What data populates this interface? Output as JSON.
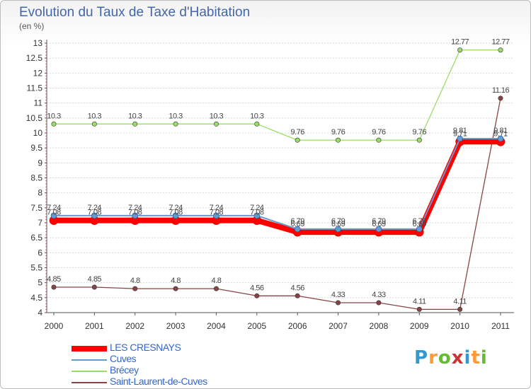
{
  "chart_data": {
    "type": "line",
    "title": "Evolution du Taux de Taxe d'Habitation",
    "subtitle": "(en %)",
    "x": [
      "2000",
      "2001",
      "2002",
      "2003",
      "2004",
      "2005",
      "2006",
      "2007",
      "2008",
      "2009",
      "2010",
      "2011"
    ],
    "ylim": [
      4,
      13
    ],
    "yticks": [
      "4",
      "4.5",
      "5",
      "5.5",
      "6",
      "6.5",
      "7",
      "7.5",
      "8",
      "8.5",
      "9",
      "9.5",
      "10",
      "10.5",
      "11",
      "11.5",
      "12",
      "12.5",
      "13"
    ],
    "grid": "horizontal",
    "legend_position": "bottom-left",
    "series": [
      {
        "name": "LES CRESNAYS",
        "color": "#ff0000",
        "values": [
          7.08,
          7.08,
          7.08,
          7.08,
          7.08,
          7.08,
          6.69,
          6.69,
          6.69,
          6.69,
          9.71,
          9.71
        ],
        "labels": [
          "7.08",
          "7.08",
          "7.08",
          "7.08",
          "7.08",
          "7.08",
          "6.69",
          "6.69",
          "6.69",
          "6.69",
          "9.71",
          "9.71"
        ]
      },
      {
        "name": "Cuves",
        "color": "#6699cc",
        "values": [
          7.24,
          7.24,
          7.24,
          7.24,
          7.24,
          7.24,
          6.79,
          6.79,
          6.79,
          6.79,
          9.81,
          9.81
        ],
        "labels": [
          "7.24",
          "7.24",
          "7.24",
          "7.24",
          "7.24",
          "7.24",
          "6.79",
          "6.79",
          "6.79",
          "6.79",
          "9.81",
          "9.81"
        ]
      },
      {
        "name": "Brécey",
        "color": "#99dd66",
        "values": [
          10.3,
          10.3,
          10.3,
          10.3,
          10.3,
          10.3,
          9.76,
          9.76,
          9.76,
          9.76,
          12.77,
          12.77
        ],
        "labels": [
          "10.3",
          "10.3",
          "10.3",
          "10.3",
          "10.3",
          "10.3",
          "9.76",
          "9.76",
          "9.76",
          "9.76",
          "12.77",
          "12.77"
        ]
      },
      {
        "name": "Saint-Laurent-de-Cuves",
        "color": "#884444",
        "values": [
          4.85,
          4.85,
          4.8,
          4.8,
          4.8,
          4.56,
          4.56,
          4.33,
          4.33,
          4.11,
          4.11,
          11.16
        ],
        "labels": [
          "4.85",
          "4.85",
          "4.8",
          "4.8",
          "4.8",
          "4.56",
          "4.56",
          "4.33",
          "4.33",
          "4.11",
          "4.11",
          "11.16"
        ]
      }
    ]
  },
  "brand": {
    "letters": [
      "P",
      "r",
      "o",
      "x",
      "i",
      "t",
      "i"
    ],
    "colors": [
      "#3399cc",
      "#ff9933",
      "#66bb33",
      "#cc3333",
      "#3399cc",
      "#ff9933",
      "#66bb33"
    ]
  }
}
